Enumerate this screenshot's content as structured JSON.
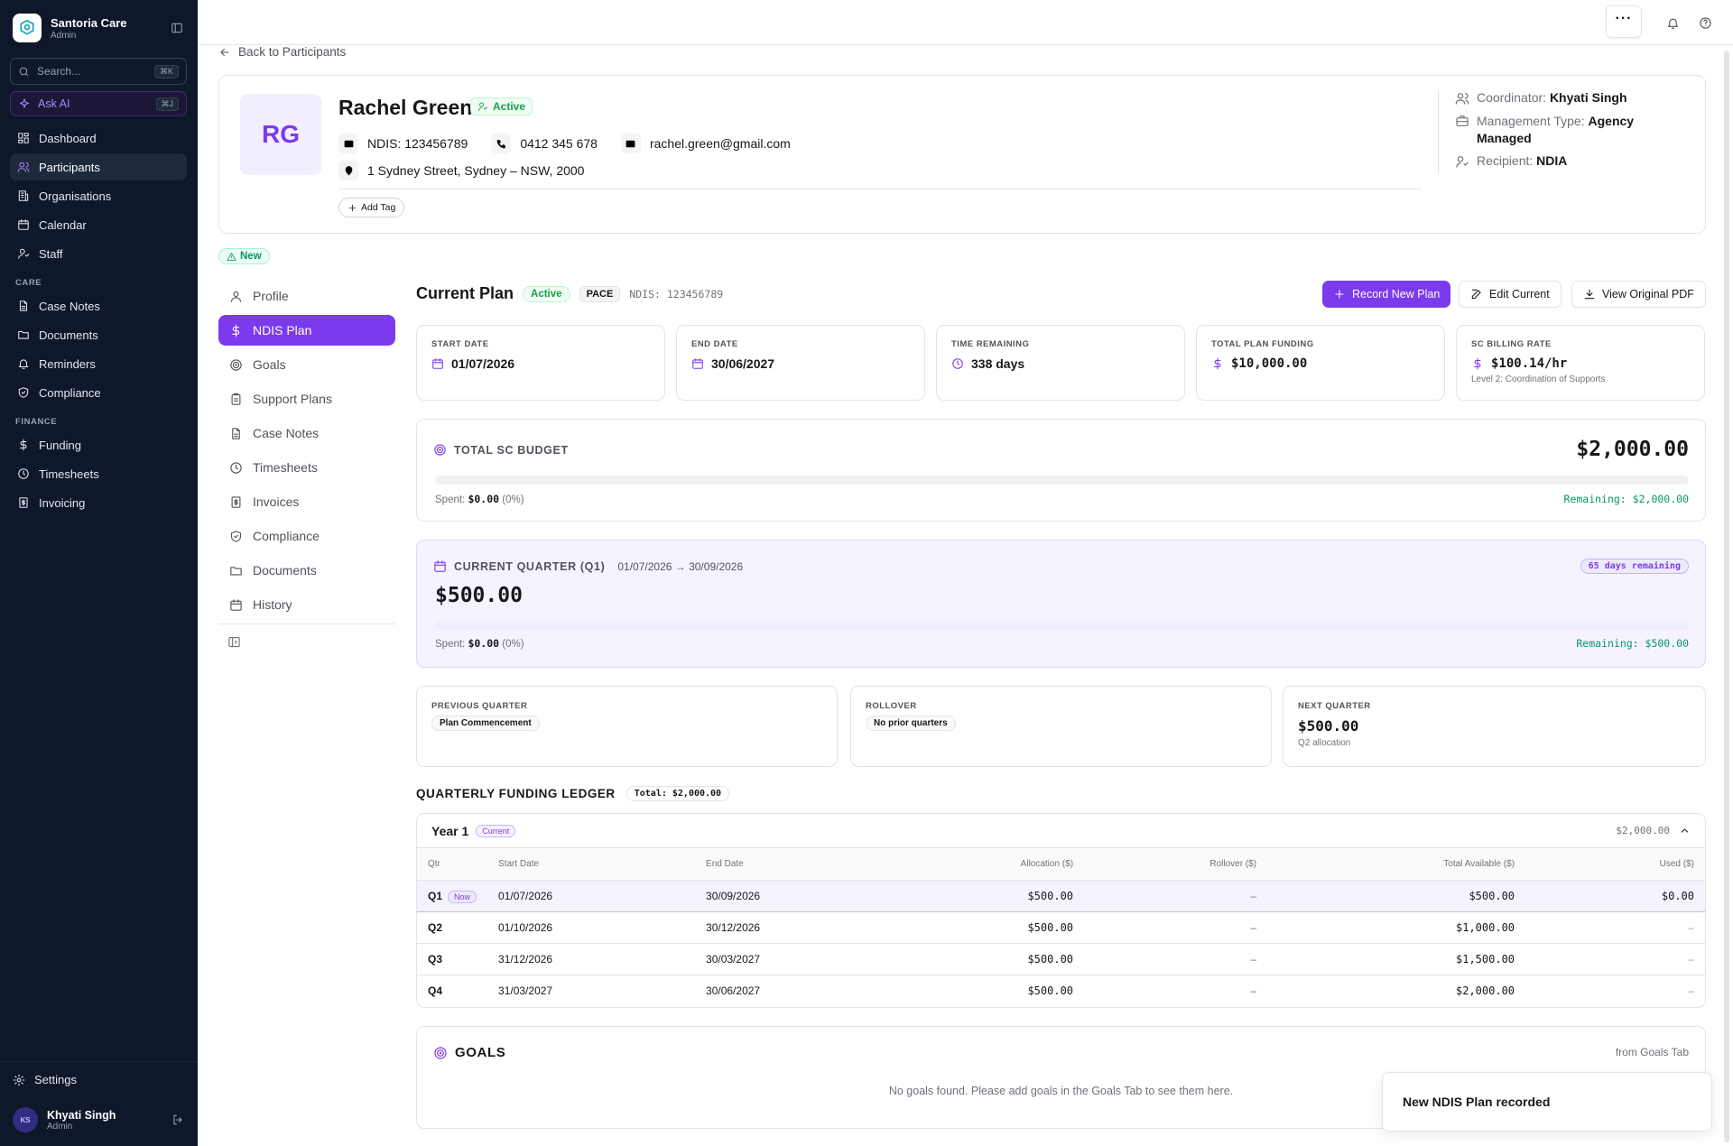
{
  "sidebar": {
    "brand_name": "Santoria Care",
    "brand_role": "Admin",
    "search_placeholder": "Search...",
    "search_shortcut": "⌘K",
    "ask_ai_label": "Ask AI",
    "ask_ai_shortcut": "⌘J",
    "main_items": [
      {
        "label": "Dashboard",
        "icon": "dashboard-icon"
      },
      {
        "label": "Participants",
        "icon": "users-icon",
        "active": true
      },
      {
        "label": "Organisations",
        "icon": "building-icon"
      },
      {
        "label": "Calendar",
        "icon": "calendar-icon"
      },
      {
        "label": "Staff",
        "icon": "staff-icon"
      }
    ],
    "care_heading": "CARE",
    "care_items": [
      {
        "label": "Case Notes",
        "icon": "file-icon"
      },
      {
        "label": "Documents",
        "icon": "folder-icon"
      },
      {
        "label": "Reminders",
        "icon": "bell-icon"
      },
      {
        "label": "Compliance",
        "icon": "shield-icon"
      }
    ],
    "finance_heading": "FINANCE",
    "finance_items": [
      {
        "label": "Funding",
        "icon": "dollar-icon"
      },
      {
        "label": "Timesheets",
        "icon": "clock-icon"
      },
      {
        "label": "Invoicing",
        "icon": "invoice-icon"
      }
    ],
    "settings_label": "Settings",
    "user": {
      "name": "Khyati Singh",
      "role": "Admin",
      "initials": "KS"
    }
  },
  "back_label": "Back to Participants",
  "participant": {
    "initials": "RG",
    "name": "Rachel Green",
    "status": "Active",
    "ndis": "NDIS: 123456789",
    "phone": "0412 345 678",
    "email": "rachel.green@gmail.com",
    "address": "1 Sydney Street, Sydney – NSW, 2000",
    "add_tag_label": "Add Tag",
    "coordinator_label": "Coordinator:",
    "coordinator": "Khyati Singh",
    "management_label": "Management Type:",
    "management": "Agency Managed",
    "recipient_label": "Recipient:",
    "recipient": "NDIA",
    "new_badge": "New"
  },
  "subnav": [
    {
      "label": "Profile",
      "icon": "user-icon"
    },
    {
      "label": "NDIS Plan",
      "icon": "dollar-icon",
      "active": true
    },
    {
      "label": "Goals",
      "icon": "target-icon"
    },
    {
      "label": "Support Plans",
      "icon": "clipboard-icon"
    },
    {
      "label": "Case Notes",
      "icon": "file-icon"
    },
    {
      "label": "Timesheets",
      "icon": "clock-icon"
    },
    {
      "label": "Invoices",
      "icon": "invoice-icon"
    },
    {
      "label": "Compliance",
      "icon": "shield-icon"
    },
    {
      "label": "Documents",
      "icon": "folder-icon"
    },
    {
      "label": "History",
      "icon": "calendar-icon"
    }
  ],
  "plan": {
    "title": "Current Plan",
    "status": "Active",
    "type": "PACE",
    "ndis": "NDIS: 123456789",
    "record_btn": "Record New Plan",
    "edit_btn": "Edit Current",
    "pdf_btn": "View Original PDF",
    "stats": [
      {
        "label": "START DATE",
        "value": "01/07/2026",
        "icon": "calendar-icon"
      },
      {
        "label": "END DATE",
        "value": "30/06/2027",
        "icon": "calendar-icon"
      },
      {
        "label": "TIME REMAINING",
        "value": "338 days",
        "icon": "clock-icon"
      },
      {
        "label": "TOTAL PLAN FUNDING",
        "value": "$10,000.00",
        "icon": "dollar-icon"
      },
      {
        "label": "SC BILLING RATE",
        "value": "$100.14/hr",
        "icon": "dollar-icon",
        "sub": "Level 2: Coordination of Supports"
      }
    ]
  },
  "budget": {
    "label": "TOTAL SC BUDGET",
    "amount": "$2,000.00",
    "spent_label": "Spent:",
    "spent": "$0.00",
    "spent_pct": "(0%)",
    "progress": 0,
    "remaining": "Remaining: $2,000.00"
  },
  "quarter": {
    "label": "CURRENT QUARTER (Q1)",
    "range": "01/07/2026 → 30/09/2026",
    "days_remaining": "65 days remaining",
    "amount": "$500.00",
    "spent_label": "Spent:",
    "spent": "$0.00",
    "spent_pct": "(0%)",
    "progress": 0,
    "remaining": "Remaining: $500.00"
  },
  "quarter_cards": {
    "previous_label": "PREVIOUS QUARTER",
    "previous_pill": "Plan Commencement",
    "rollover_label": "ROLLOVER",
    "rollover_pill": "No prior quarters",
    "next_label": "NEXT QUARTER",
    "next_value": "$500.00",
    "next_sub": "Q2 allocation"
  },
  "ledger": {
    "title": "QUARTERLY FUNDING LEDGER",
    "total": "Total: $2,000.00",
    "year_title": "Year 1",
    "year_badge": "Current",
    "year_total": "$2,000.00",
    "columns": [
      "Qtr",
      "Start Date",
      "End Date",
      "Allocation ($)",
      "Rollover ($)",
      "Total Available ($)",
      "Used ($)"
    ],
    "rows": [
      {
        "qtr": "Q1",
        "now": "Now",
        "start": "01/07/2026",
        "end": "30/09/2026",
        "alloc": "$500.00",
        "rollover": "–",
        "total": "$500.00",
        "used": "$0.00"
      },
      {
        "qtr": "Q2",
        "start": "01/10/2026",
        "end": "30/12/2026",
        "alloc": "$500.00",
        "rollover": "–",
        "total": "$1,000.00",
        "used": "–"
      },
      {
        "qtr": "Q3",
        "start": "31/12/2026",
        "end": "30/03/2027",
        "alloc": "$500.00",
        "rollover": "–",
        "total": "$1,500.00",
        "used": "–"
      },
      {
        "qtr": "Q4",
        "start": "31/03/2027",
        "end": "30/06/2027",
        "alloc": "$500.00",
        "rollover": "–",
        "total": "$2,000.00",
        "used": "–"
      }
    ]
  },
  "goals": {
    "title": "GOALS",
    "source": "from Goals Tab",
    "empty": "No goals found. Please add goals in the Goals Tab to see them here."
  },
  "toast": "New NDIS Plan recorded"
}
